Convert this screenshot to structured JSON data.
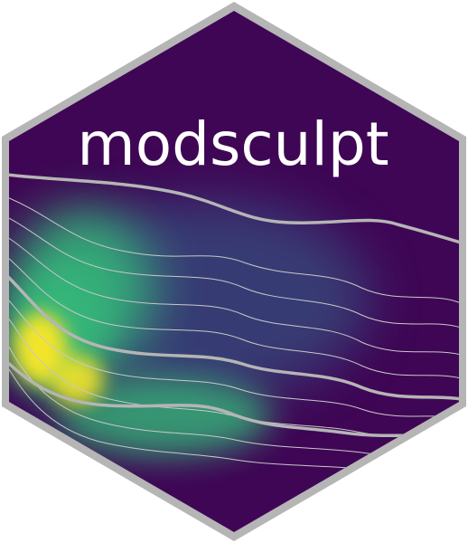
{
  "logo": {
    "title": "modsculpt",
    "colors": {
      "background": "#3f0655",
      "border": "#b5b5b5",
      "text": "#ffffff",
      "lines": "#c8c8c8",
      "heat_low": "#440154",
      "heat_mid": "#31688e",
      "heat_green": "#35b779",
      "heat_high": "#fde725"
    }
  }
}
